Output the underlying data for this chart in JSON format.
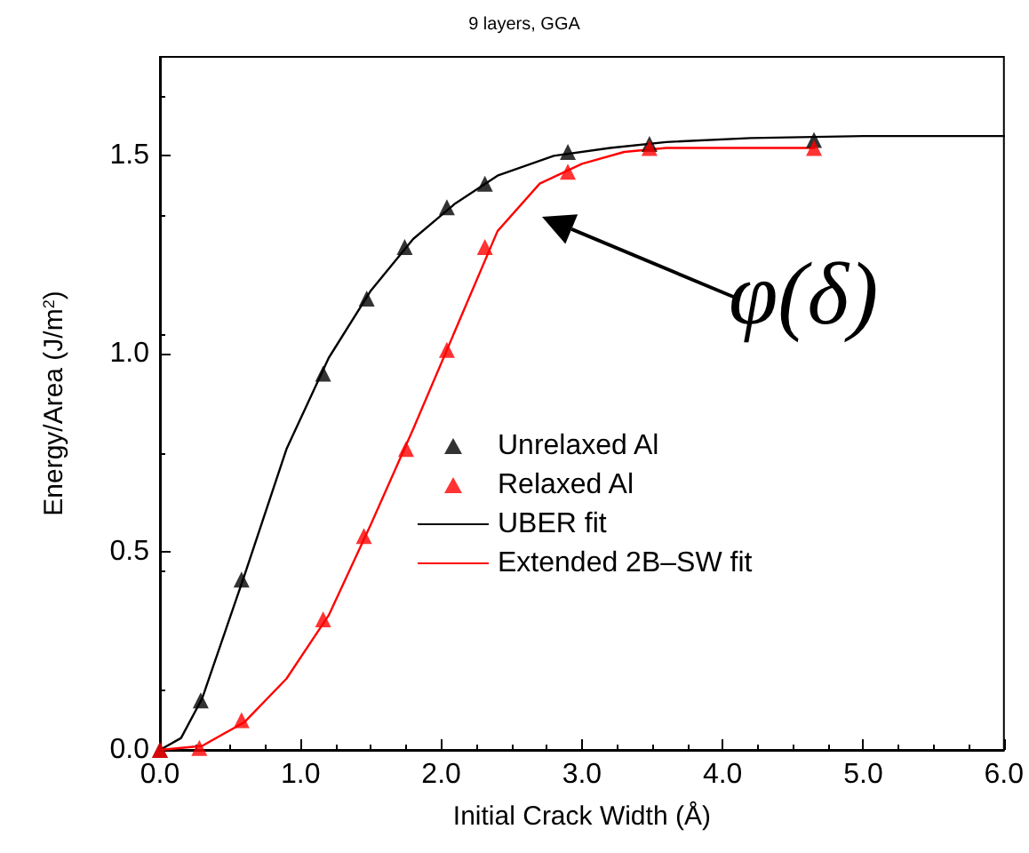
{
  "chart_data": {
    "type": "scatter",
    "title": "9 layers, GGA",
    "xlabel": "Initial Crack Width (Å)",
    "ylabel": "Energy/Area (J/m$^{2}$)",
    "xlim": [
      0,
      6
    ],
    "xticks": [
      {
        "value": 0,
        "label": "0.0"
      },
      {
        "value": 1,
        "label": "1.0"
      },
      {
        "value": 2,
        "label": "2.0"
      },
      {
        "value": 3,
        "label": "3.0"
      },
      {
        "value": 4,
        "label": "4.0"
      },
      {
        "value": 5,
        "label": "5.0"
      },
      {
        "value": 6,
        "label": "6.0"
      }
    ],
    "ylim": [
      0,
      1.75
    ],
    "yticks": [
      {
        "value": 0,
        "label": "0.0"
      },
      {
        "value": 0.5,
        "label": "0.5"
      },
      {
        "value": 1,
        "label": "1.0"
      },
      {
        "value": 1.5,
        "label": "1.5"
      }
    ],
    "grid": false,
    "legend": "bottom",
    "series": [
      {
        "name": "Unrelaxed Al",
        "marker": "triangle",
        "color": "#000000",
        "x": [
          0,
          0.29,
          0.58,
          1.16,
          1.47,
          1.74,
          2.04,
          2.31,
          2.9,
          3.48,
          4.65
        ],
        "values": [
          0,
          0.125,
          0.43,
          0.95,
          1.14,
          1.27,
          1.37,
          1.43,
          1.51,
          1.53,
          1.54
        ]
      },
      {
        "name": "Relaxed Al",
        "marker": "triangle",
        "color": "#ff0000",
        "x": [
          0,
          0.28,
          0.58,
          1.16,
          1.45,
          1.75,
          2.04,
          2.31,
          2.9,
          3.48,
          4.65
        ],
        "values": [
          0,
          0.005,
          0.075,
          0.33,
          0.54,
          0.76,
          1.01,
          1.27,
          1.46,
          1.52,
          1.52
        ]
      },
      {
        "name": "UBER fit",
        "type": "line",
        "color": "#000000",
        "x": [
          0,
          0.15,
          0.3,
          0.6,
          0.9,
          1.2,
          1.5,
          1.8,
          2.1,
          2.4,
          2.8,
          3.2,
          3.6,
          4.2,
          5,
          6
        ],
        "values": [
          0,
          0.03,
          0.13,
          0.44,
          0.76,
          0.99,
          1.16,
          1.29,
          1.38,
          1.45,
          1.5,
          1.52,
          1.535,
          1.545,
          1.55,
          1.55
        ]
      },
      {
        "name": "Extended 2B–SW fit",
        "type": "line",
        "color": "#ff0000",
        "x": [
          0,
          0.3,
          0.6,
          0.9,
          1.2,
          1.5,
          1.8,
          2.1,
          2.4,
          2.7,
          3,
          3.3,
          3.6,
          4.65
        ],
        "values": [
          0,
          0.01,
          0.07,
          0.18,
          0.34,
          0.57,
          0.81,
          1.06,
          1.31,
          1.43,
          1.48,
          1.51,
          1.52,
          1.52
        ]
      }
    ],
    "annotations": [
      "φ(δ)"
    ]
  }
}
